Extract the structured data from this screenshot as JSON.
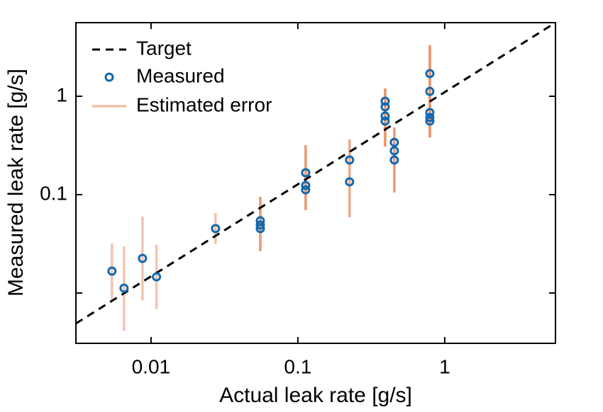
{
  "chart_data": {
    "type": "scatter",
    "x_label": "Actual leak rate [g/s]",
    "y_label": "Measured leak rate [g/s]",
    "xscale": "log",
    "yscale": "log",
    "xlim": [
      0.00308,
      5.68
    ],
    "ylim": [
      0.00308,
      5.6
    ],
    "xticks": [
      0.01,
      0.1,
      1
    ],
    "yticks": [
      0.1,
      1
    ],
    "y_unlabeled_ticks": [
      0.01
    ],
    "legend": "upper left",
    "target": {
      "name": "Target",
      "color": "#000000",
      "x": [
        0.00308,
        5.68
      ],
      "values": [
        0.0049,
        5.6
      ]
    },
    "series": [
      {
        "name": "Measured",
        "color": "#1368ae",
        "x": [
          0.00542,
          0.00655,
          0.00875,
          0.0109,
          0.0275,
          0.0555,
          0.0555,
          0.0555,
          0.113,
          0.113,
          0.113,
          0.225,
          0.225,
          0.393,
          0.393,
          0.393,
          0.393,
          0.454,
          0.454,
          0.454,
          0.792,
          0.792,
          0.792,
          0.792,
          0.792
        ],
        "values": [
          0.0167,
          0.0112,
          0.0225,
          0.0146,
          0.0452,
          0.0542,
          0.0491,
          0.0452,
          0.167,
          0.124,
          0.112,
          0.225,
          0.135,
          0.891,
          0.78,
          0.629,
          0.56,
          0.34,
          0.279,
          0.225,
          1.7,
          1.12,
          0.683,
          0.609,
          0.56
        ]
      }
    ],
    "error": {
      "name": "Estimated error",
      "color": "#e8936c",
      "low": [
        0.00848,
        0.00415,
        0.0084,
        0.00683,
        0.0314,
        0.0266,
        0.0266,
        0.0266,
        0.0696,
        0.0696,
        0.0696,
        0.059,
        0.059,
        0.308,
        0.308,
        0.308,
        0.308,
        0.105,
        0.105,
        0.105,
        0.382,
        0.382,
        0.382,
        0.382,
        0.382
      ],
      "high": [
        0.0319,
        0.0297,
        0.06,
        0.0309,
        0.065,
        0.095,
        0.095,
        0.095,
        0.318,
        0.318,
        0.318,
        0.364,
        0.364,
        1.2,
        1.2,
        1.2,
        1.2,
        0.482,
        0.482,
        0.482,
        3.3,
        3.3,
        3.3,
        3.3,
        3.3
      ]
    }
  }
}
